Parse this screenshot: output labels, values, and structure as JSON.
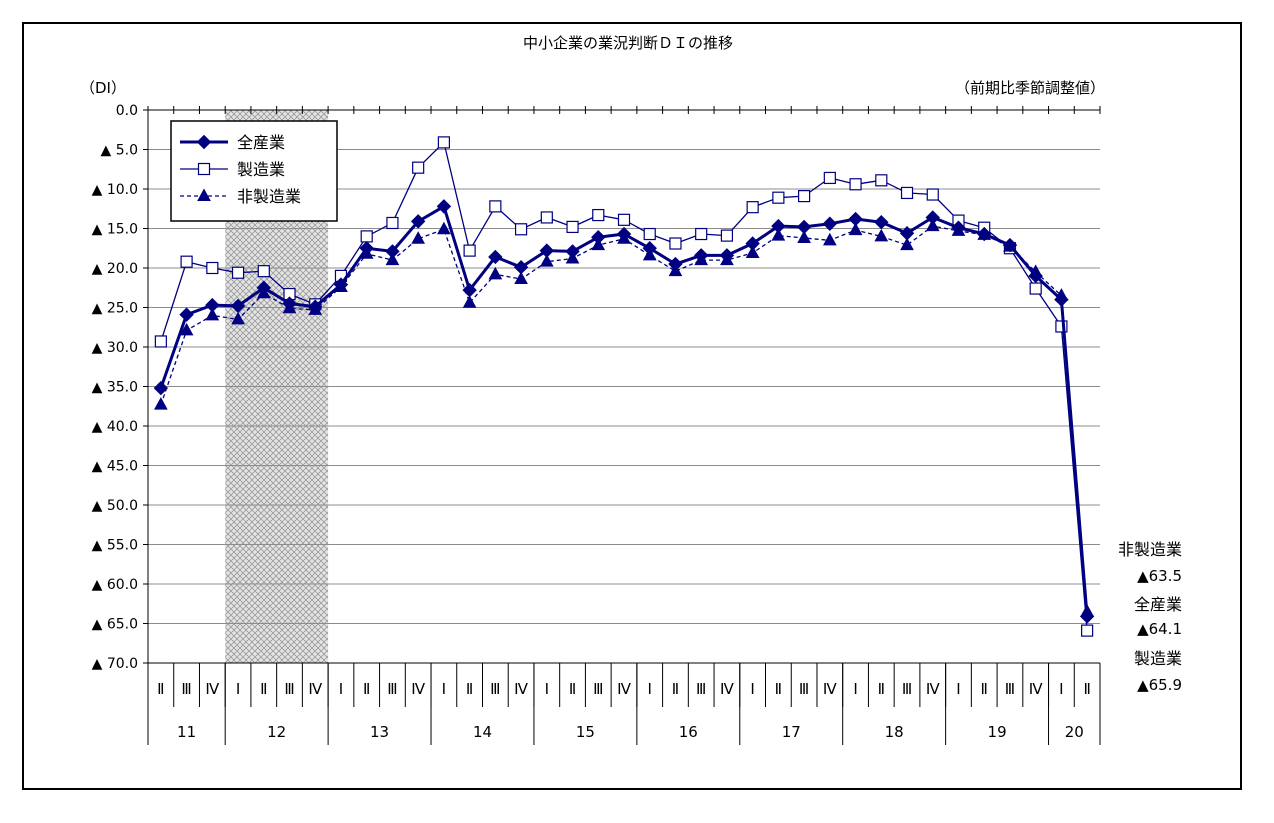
{
  "chart_data": {
    "type": "line",
    "title": "中小企業の業況判断ＤＩの推移",
    "unit_label": "（DI）",
    "note": "（前期比季節調整値）",
    "ylim": [
      0,
      70
    ],
    "y_ticks": [
      "0.0",
      "▲ 5.0",
      "▲ 10.0",
      "▲ 15.0",
      "▲ 20.0",
      "▲ 25.0",
      "▲ 30.0",
      "▲ 35.0",
      "▲ 40.0",
      "▲ 45.0",
      "▲ 50.0",
      "▲ 55.0",
      "▲ 60.0",
      "▲ 65.0",
      "▲ 70.0"
    ],
    "quarters": [
      "Ⅱ",
      "Ⅲ",
      "Ⅳ",
      "Ⅰ",
      "Ⅱ",
      "Ⅲ",
      "Ⅳ",
      "Ⅰ",
      "Ⅱ",
      "Ⅲ",
      "Ⅳ",
      "Ⅰ",
      "Ⅱ",
      "Ⅲ",
      "Ⅳ",
      "Ⅰ",
      "Ⅱ",
      "Ⅲ",
      "Ⅳ",
      "Ⅰ",
      "Ⅱ",
      "Ⅲ",
      "Ⅳ",
      "Ⅰ",
      "Ⅱ",
      "Ⅲ",
      "Ⅳ",
      "Ⅰ",
      "Ⅱ",
      "Ⅲ",
      "Ⅳ",
      "Ⅰ",
      "Ⅱ",
      "Ⅲ",
      "Ⅳ",
      "Ⅰ",
      "Ⅱ"
    ],
    "years": [
      {
        "label": "11",
        "count": 3
      },
      {
        "label": "12",
        "count": 4
      },
      {
        "label": "13",
        "count": 4
      },
      {
        "label": "14",
        "count": 4
      },
      {
        "label": "15",
        "count": 4
      },
      {
        "label": "16",
        "count": 4
      },
      {
        "label": "17",
        "count": 4
      },
      {
        "label": "18",
        "count": 4
      },
      {
        "label": "19",
        "count": 4
      },
      {
        "label": "20",
        "count": 2
      }
    ],
    "shaded_range": [
      3,
      6
    ],
    "legend_placement": "top-left",
    "series": [
      {
        "name": "全産業",
        "color": "#000080",
        "marker": "filled-diamond",
        "values": [
          -35.2,
          -25.9,
          -24.7,
          -24.8,
          -22.5,
          -24.5,
          -24.9,
          -22.1,
          -17.5,
          -17.9,
          -14.1,
          -12.2,
          -22.8,
          -18.6,
          -19.9,
          -17.8,
          -17.9,
          -16.1,
          -15.7,
          -17.5,
          -19.5,
          -18.4,
          -18.4,
          -16.9,
          -14.7,
          -14.8,
          -14.4,
          -13.8,
          -14.2,
          -15.6,
          -13.6,
          -14.9,
          -15.7,
          -17.1,
          -21.0,
          -24.0,
          -64.1
        ]
      },
      {
        "name": "製造業",
        "color": "#000080",
        "marker": "open-square",
        "values": [
          -29.3,
          -19.2,
          -20.0,
          -20.6,
          -20.4,
          -23.3,
          -24.6,
          -21.0,
          -16.0,
          -14.3,
          -7.3,
          -4.1,
          -17.8,
          -12.2,
          -15.1,
          -13.6,
          -14.8,
          -13.3,
          -13.9,
          -15.7,
          -16.9,
          -15.7,
          -15.9,
          -12.3,
          -11.1,
          -10.9,
          -8.6,
          -9.4,
          -8.9,
          -10.5,
          -10.7,
          -14.0,
          -14.9,
          -17.5,
          -22.6,
          -27.4,
          -65.9
        ]
      },
      {
        "name": "非製造業",
        "color": "#000080",
        "marker": "filled-triangle",
        "dash": true,
        "values": [
          -37.3,
          -27.9,
          -26.0,
          -26.5,
          -23.2,
          -25.1,
          -25.3,
          -22.4,
          -18.2,
          -19.0,
          -16.3,
          -15.1,
          -24.4,
          -20.8,
          -21.4,
          -19.2,
          -18.8,
          -17.1,
          -16.3,
          -18.4,
          -20.4,
          -19.0,
          -19.0,
          -18.1,
          -15.9,
          -16.2,
          -16.5,
          -15.2,
          -16.0,
          -17.1,
          -14.7,
          -15.3,
          -15.8,
          -17.3,
          -20.5,
          -23.5,
          -63.5
        ]
      }
    ],
    "end_labels": [
      {
        "name": "非製造業",
        "value": "▲63.5"
      },
      {
        "name": "全産業",
        "value": "▲64.1"
      },
      {
        "name": "製造業",
        "value": "▲65.9"
      }
    ]
  }
}
